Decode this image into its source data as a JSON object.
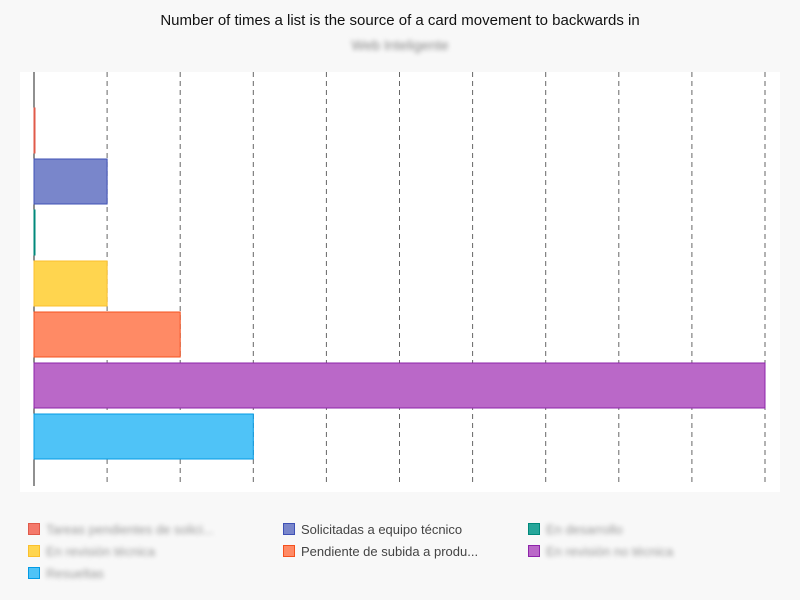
{
  "chart_data": {
    "type": "bar",
    "orientation": "horizontal",
    "title": "Number of times a list is the source of a card movement to backwards in",
    "subtitle": "Web Inteligente",
    "xlim": [
      0,
      10
    ],
    "x_ticks": [
      "0.0",
      "1.0",
      "2.0",
      "3.0",
      "4.0",
      "5.0",
      "6.0",
      "7.0",
      "8.0",
      "9.0",
      "10.0"
    ],
    "grid": "vertical dashed",
    "legend_position": "bottom",
    "series": [
      {
        "name": "Tareas pendientes de solici...",
        "value": 0,
        "color": "#f4796b",
        "border": "#e05a4a",
        "blurred": true
      },
      {
        "name": "Solicitadas a equipo técnico",
        "value": 1,
        "color": "#7986cb",
        "border": "#3f51b5",
        "blurred": false
      },
      {
        "name": "En desarrollo",
        "value": 0,
        "color": "#26a69a",
        "border": "#00897b",
        "blurred": true
      },
      {
        "name": "En revisión técnica",
        "value": 1,
        "color": "#ffd54f",
        "border": "#fbc02d",
        "blurred": true
      },
      {
        "name": "Pendiente de subida a produ...",
        "value": 2,
        "color": "#ff8a65",
        "border": "#f4511e",
        "blurred": false
      },
      {
        "name": "En revisión no técnica",
        "value": 10,
        "color": "#ba68c8",
        "border": "#8e24aa",
        "blurred": true
      },
      {
        "name": "Resueltas",
        "value": 3,
        "color": "#4fc3f7",
        "border": "#039be5",
        "blurred": true
      }
    ]
  }
}
